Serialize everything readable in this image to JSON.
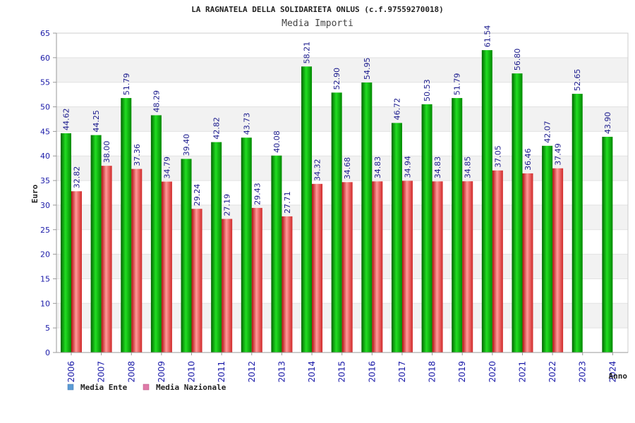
{
  "chart_data": {
    "type": "bar",
    "title": "LA RAGNATELA DELLA SOLIDARIETA ONLUS (c.f.97559270018)",
    "subtitle": "Media Importi",
    "ylabel": "Euro",
    "xlabel": "Anno",
    "ylim": [
      0,
      65
    ],
    "yticks": [
      0,
      5,
      10,
      15,
      20,
      25,
      30,
      35,
      40,
      45,
      50,
      55,
      60,
      65
    ],
    "grid": "horizontal-bands",
    "legend_position": "bottom-left",
    "categories": [
      "2006",
      "2007",
      "2008",
      "2009",
      "2010",
      "2011",
      "2012",
      "2013",
      "2014",
      "2015",
      "2016",
      "2017",
      "2018",
      "2019",
      "2020",
      "2021",
      "2022",
      "2023",
      "2024"
    ],
    "series": [
      {
        "name": "Media Ente",
        "legend_color": "#5b9bd5",
        "color": "#11aa11",
        "values": [
          44.62,
          44.25,
          51.79,
          48.29,
          39.4,
          42.82,
          43.73,
          40.08,
          58.21,
          52.9,
          54.95,
          46.72,
          50.53,
          51.79,
          61.54,
          56.8,
          42.07,
          52.65,
          43.9
        ],
        "labels": [
          "44.62",
          "44.25",
          "51.79",
          "48.29",
          "39.40",
          "42.82",
          "43.73",
          "40.08",
          "58.21",
          "52.90",
          "54.95",
          "46.72",
          "50.53",
          "51.79",
          "61.54",
          "56.80",
          "42.07",
          "52.65",
          "43.90"
        ]
      },
      {
        "name": "Media Nazionale",
        "legend_color": "#e07aa8",
        "color": "#e03a3a",
        "values": [
          32.82,
          38.0,
          37.36,
          34.79,
          29.24,
          27.19,
          29.43,
          27.71,
          34.32,
          34.68,
          34.83,
          34.94,
          34.83,
          34.85,
          37.05,
          36.46,
          37.49,
          null,
          null
        ],
        "labels": [
          "32.82",
          "38.00",
          "37.36",
          "34.79",
          "29.24",
          "27.19",
          "29.43",
          "27.71",
          "34.32",
          "34.68",
          "34.83",
          "34.94",
          "34.83",
          "34.85",
          "37.05",
          "36.46",
          "37.49",
          null,
          null
        ]
      }
    ]
  }
}
